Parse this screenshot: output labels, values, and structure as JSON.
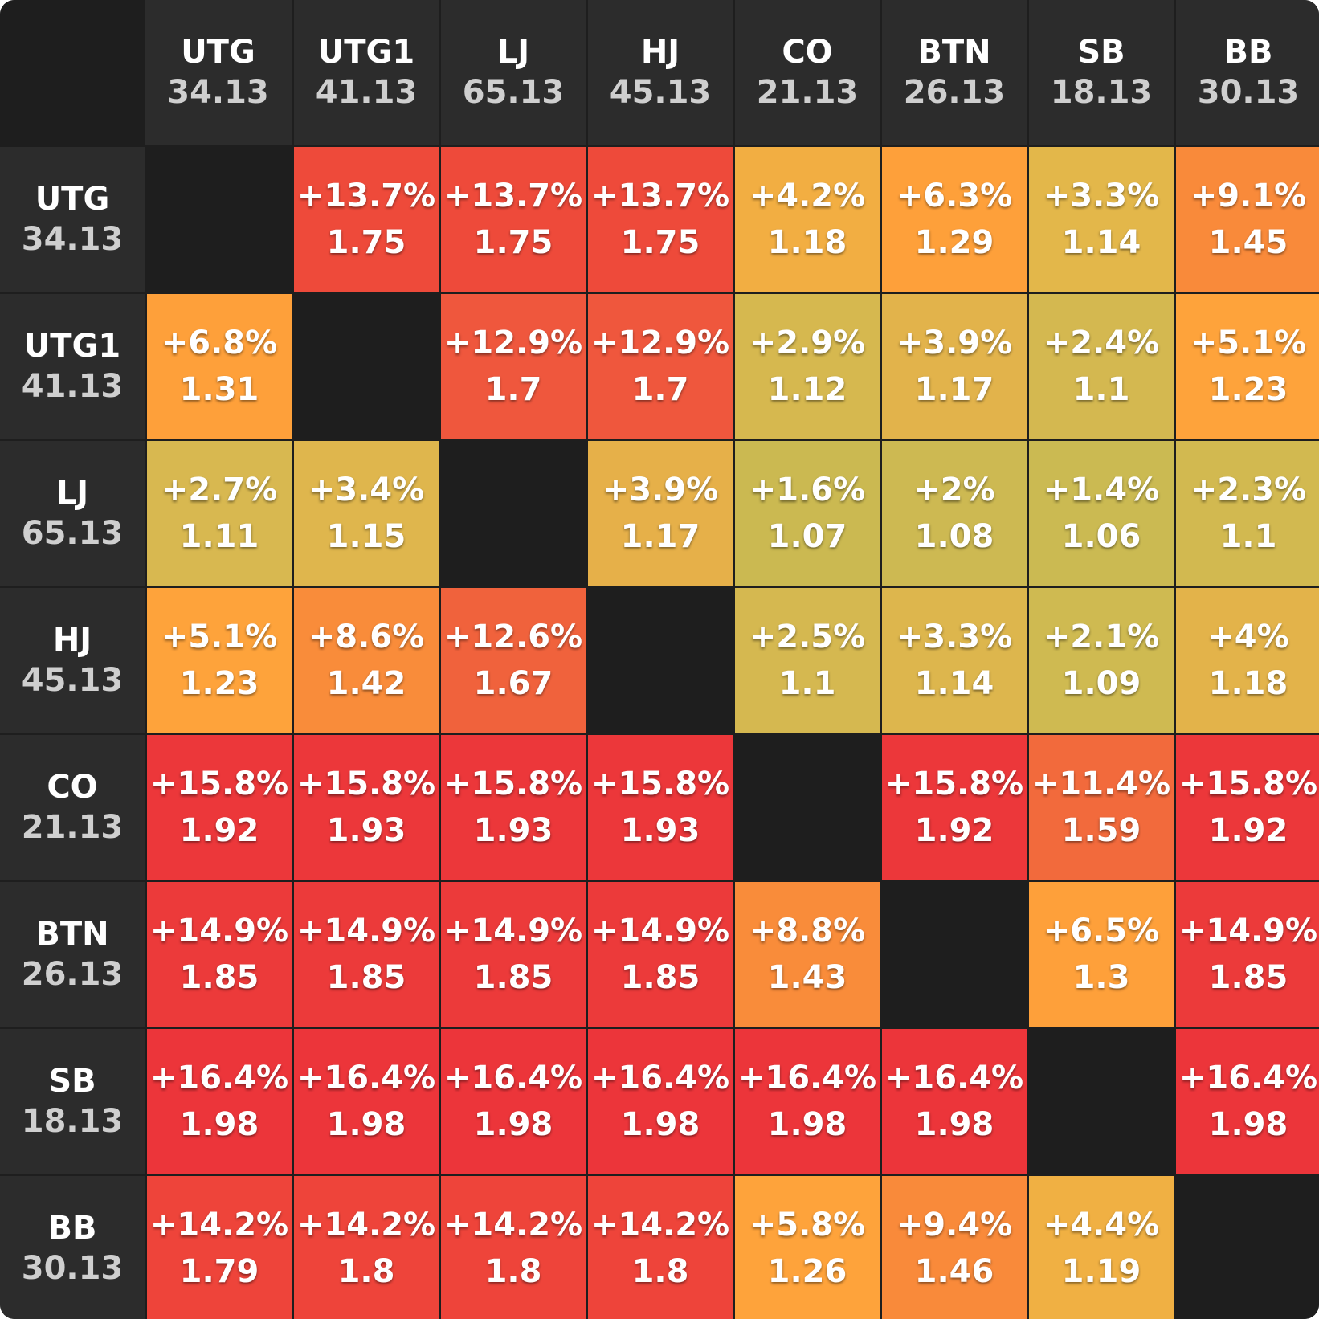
{
  "chart_data": {
    "type": "heatmap",
    "positions": [
      {
        "name": "UTG",
        "stack": "34.13"
      },
      {
        "name": "UTG1",
        "stack": "41.13"
      },
      {
        "name": "LJ",
        "stack": "65.13"
      },
      {
        "name": "HJ",
        "stack": "45.13"
      },
      {
        "name": "CO",
        "stack": "21.13"
      },
      {
        "name": "BTN",
        "stack": "26.13"
      },
      {
        "name": "SB",
        "stack": "18.13"
      },
      {
        "name": "BB",
        "stack": "30.13"
      }
    ],
    "cells": [
      [
        null,
        {
          "pct": "+13.7%",
          "val": "1.75",
          "color": "#ee4a3a"
        },
        {
          "pct": "+13.7%",
          "val": "1.75",
          "color": "#ee4a3a"
        },
        {
          "pct": "+13.7%",
          "val": "1.75",
          "color": "#ee4a3a"
        },
        {
          "pct": "+4.2%",
          "val": "1.18",
          "color": "#f2ae42"
        },
        {
          "pct": "+6.3%",
          "val": "1.29",
          "color": "#fea03a"
        },
        {
          "pct": "+3.3%",
          "val": "1.14",
          "color": "#e3b74a"
        },
        {
          "pct": "+9.1%",
          "val": "1.45",
          "color": "#f98a3a"
        }
      ],
      [
        {
          "pct": "+6.8%",
          "val": "1.31",
          "color": "#fea03a"
        },
        null,
        {
          "pct": "+12.9%",
          "val": "1.7",
          "color": "#ef573d"
        },
        {
          "pct": "+12.9%",
          "val": "1.7",
          "color": "#ef573d"
        },
        {
          "pct": "+2.9%",
          "val": "1.12",
          "color": "#d6b84f"
        },
        {
          "pct": "+3.9%",
          "val": "1.17",
          "color": "#e2b34b"
        },
        {
          "pct": "+2.4%",
          "val": "1.1",
          "color": "#d4b850"
        },
        {
          "pct": "+5.1%",
          "val": "1.23",
          "color": "#fea33b"
        }
      ],
      [
        {
          "pct": "+2.7%",
          "val": "1.11",
          "color": "#d8b850"
        },
        {
          "pct": "+3.4%",
          "val": "1.15",
          "color": "#dfb64d"
        },
        null,
        {
          "pct": "+3.9%",
          "val": "1.17",
          "color": "#e6b049"
        },
        {
          "pct": "+1.6%",
          "val": "1.07",
          "color": "#cbb951"
        },
        {
          "pct": "+2%",
          "val": "1.08",
          "color": "#cdb952"
        },
        {
          "pct": "+1.4%",
          "val": "1.06",
          "color": "#cbba52"
        },
        {
          "pct": "+2.3%",
          "val": "1.1",
          "color": "#d2b950"
        }
      ],
      [
        {
          "pct": "+5.1%",
          "val": "1.23",
          "color": "#fea33b"
        },
        {
          "pct": "+8.6%",
          "val": "1.42",
          "color": "#f98c3a"
        },
        {
          "pct": "+12.6%",
          "val": "1.67",
          "color": "#f0623c"
        },
        null,
        {
          "pct": "+2.5%",
          "val": "1.1",
          "color": "#d5b850"
        },
        {
          "pct": "+3.3%",
          "val": "1.14",
          "color": "#ddb64d"
        },
        {
          "pct": "+2.1%",
          "val": "1.09",
          "color": "#cfba51"
        },
        {
          "pct": "+4%",
          "val": "1.18",
          "color": "#e3b34a"
        }
      ],
      [
        {
          "pct": "+15.8%",
          "val": "1.92",
          "color": "#ec373a"
        },
        {
          "pct": "+15.8%",
          "val": "1.93",
          "color": "#ec373a"
        },
        {
          "pct": "+15.8%",
          "val": "1.93",
          "color": "#ec373a"
        },
        {
          "pct": "+15.8%",
          "val": "1.93",
          "color": "#ec373a"
        },
        null,
        {
          "pct": "+15.8%",
          "val": "1.92",
          "color": "#ec373a"
        },
        {
          "pct": "+11.4%",
          "val": "1.59",
          "color": "#f26a3c"
        },
        {
          "pct": "+15.8%",
          "val": "1.92",
          "color": "#ec373a"
        }
      ],
      [
        {
          "pct": "+14.9%",
          "val": "1.85",
          "color": "#ec3a3a"
        },
        {
          "pct": "+14.9%",
          "val": "1.85",
          "color": "#ec3a3a"
        },
        {
          "pct": "+14.9%",
          "val": "1.85",
          "color": "#ec3a3a"
        },
        {
          "pct": "+14.9%",
          "val": "1.85",
          "color": "#ec3a3a"
        },
        {
          "pct": "+8.8%",
          "val": "1.43",
          "color": "#f98c3a"
        },
        null,
        {
          "pct": "+6.5%",
          "val": "1.3",
          "color": "#fea03a"
        },
        {
          "pct": "+14.9%",
          "val": "1.85",
          "color": "#ec3a3a"
        }
      ],
      [
        {
          "pct": "+16.4%",
          "val": "1.98",
          "color": "#ec353a"
        },
        {
          "pct": "+16.4%",
          "val": "1.98",
          "color": "#ec353a"
        },
        {
          "pct": "+16.4%",
          "val": "1.98",
          "color": "#ec353a"
        },
        {
          "pct": "+16.4%",
          "val": "1.98",
          "color": "#ec353a"
        },
        {
          "pct": "+16.4%",
          "val": "1.98",
          "color": "#ec353a"
        },
        {
          "pct": "+16.4%",
          "val": "1.98",
          "color": "#ec353a"
        },
        null,
        {
          "pct": "+16.4%",
          "val": "1.98",
          "color": "#ec353a"
        }
      ],
      [
        {
          "pct": "+14.2%",
          "val": "1.79",
          "color": "#ee443a"
        },
        {
          "pct": "+14.2%",
          "val": "1.8",
          "color": "#ee443a"
        },
        {
          "pct": "+14.2%",
          "val": "1.8",
          "color": "#ee443a"
        },
        {
          "pct": "+14.2%",
          "val": "1.8",
          "color": "#ee443a"
        },
        {
          "pct": "+5.8%",
          "val": "1.26",
          "color": "#fea33b"
        },
        {
          "pct": "+9.4%",
          "val": "1.46",
          "color": "#f98a3a"
        },
        {
          "pct": "+4.4%",
          "val": "1.19",
          "color": "#f0b043"
        },
        null
      ]
    ]
  }
}
